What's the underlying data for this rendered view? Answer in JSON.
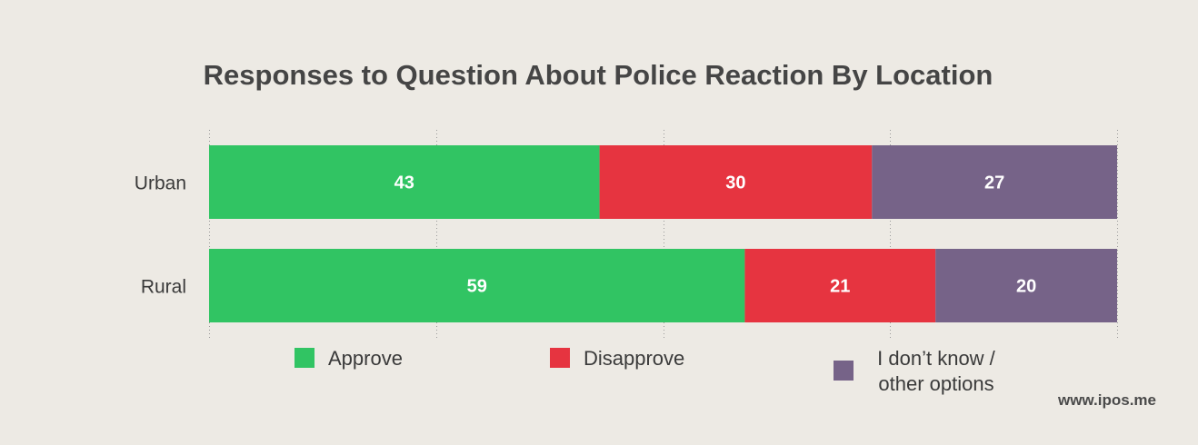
{
  "chart_data": {
    "type": "bar",
    "orientation": "horizontal",
    "stacked": true,
    "title": "Responses to Question About Police Reaction By Location",
    "categories": [
      "Urban",
      "Rural"
    ],
    "series": [
      {
        "name": "Approve",
        "values": [
          43,
          59
        ],
        "color": "#31c463"
      },
      {
        "name": "Disapprove",
        "values": [
          30,
          21
        ],
        "color": "#e63440"
      },
      {
        "name": "I don’t know / other options",
        "label_lines": [
          "I don’t know /",
          "other options"
        ],
        "values": [
          27,
          20
        ],
        "color": "#766388"
      }
    ],
    "xlim": [
      0,
      100
    ],
    "grid": true,
    "legend_position": "bottom",
    "xlabel": "",
    "ylabel": ""
  },
  "source": "www.ipos.me"
}
